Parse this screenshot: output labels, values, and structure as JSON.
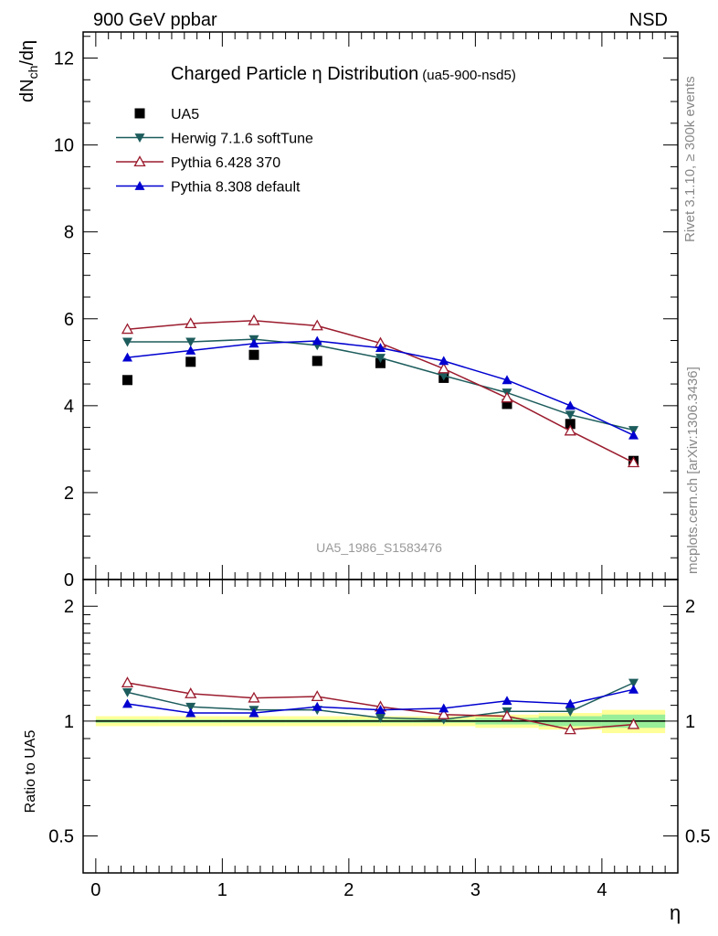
{
  "header": {
    "left_label": "900 GeV ppbar",
    "right_label": "NSD"
  },
  "side_labels": {
    "rivet": "Rivet 3.1.10, ≥ 300k events",
    "mcplots": "mcplots.cern.ch [arXiv:1306.3436]"
  },
  "colors": {
    "data": "#000000",
    "herwig": "#1d5c5c",
    "pythia6": "#9b1c2e",
    "pythia8": "#0000d0",
    "band_yellow": "#ffff99",
    "band_green": "#99ee99"
  },
  "chart_data": [
    {
      "type": "line",
      "title": "Charged Particle η Distribution",
      "subtitle": "(ua5-900-nsd5)",
      "xlabel": "",
      "ylabel": "dN_ch/dη",
      "watermark": "UA5_1986_S1583476",
      "xlim": [
        -0.1,
        4.6
      ],
      "ylim": [
        0,
        12.6
      ],
      "yticks": [
        0,
        2,
        4,
        6,
        8,
        10,
        12
      ],
      "xticks": [
        0,
        1,
        2,
        3,
        4
      ],
      "grid": false,
      "legend_position": "top-left",
      "x": [
        0.25,
        0.75,
        1.25,
        1.75,
        2.25,
        2.75,
        3.25,
        3.75,
        4.25
      ],
      "series": [
        {
          "name": "UA5",
          "marker": "square",
          "values": [
            4.59,
            5.01,
            5.17,
            5.03,
            4.98,
            4.64,
            4.04,
            3.58,
            2.73
          ]
        },
        {
          "name": "Herwig 7.1.6 softTune",
          "marker": "triangle-down",
          "values": [
            5.47,
            5.47,
            5.53,
            5.39,
            5.1,
            4.69,
            4.3,
            3.79,
            3.44
          ]
        },
        {
          "name": "Pythia 6.428 370",
          "marker": "triangle-open",
          "values": [
            5.76,
            5.89,
            5.96,
            5.84,
            5.44,
            4.85,
            4.18,
            3.42,
            2.69
          ]
        },
        {
          "name": "Pythia 8.308 default",
          "marker": "triangle-up",
          "values": [
            5.11,
            5.27,
            5.43,
            5.49,
            5.33,
            5.03,
            4.59,
            4.0,
            3.32
          ]
        }
      ]
    },
    {
      "type": "line",
      "xlabel": "η",
      "ylabel": "Ratio to UA5",
      "log_y": true,
      "ylim": [
        0.4,
        2.35
      ],
      "yticks": [
        0.5,
        1,
        2
      ],
      "yticklabels": [
        "0.5",
        "1",
        "2"
      ],
      "xticks": [
        0,
        1,
        2,
        3,
        4
      ],
      "xticklabels": [
        "0",
        "1",
        "2",
        "3",
        "4"
      ],
      "xlim": [
        -0.1,
        4.6
      ],
      "x": [
        0.25,
        0.75,
        1.25,
        1.75,
        2.25,
        2.75,
        3.25,
        3.75,
        4.25
      ],
      "bands": {
        "x_edges": [
          0,
          0.5,
          1,
          1.5,
          2,
          2.5,
          3,
          3.5,
          4,
          4.5
        ],
        "yellow": [
          [
            0.97,
            1.03
          ],
          [
            0.97,
            1.03
          ],
          [
            0.97,
            1.03
          ],
          [
            0.97,
            1.03
          ],
          [
            0.97,
            1.03
          ],
          [
            0.97,
            1.03
          ],
          [
            0.96,
            1.04
          ],
          [
            0.95,
            1.05
          ],
          [
            0.93,
            1.07
          ]
        ],
        "green": [
          [
            0.99,
            1.01
          ],
          [
            0.99,
            1.01
          ],
          [
            0.99,
            1.01
          ],
          [
            0.99,
            1.01
          ],
          [
            0.99,
            1.01
          ],
          [
            0.99,
            1.01
          ],
          [
            0.98,
            1.02
          ],
          [
            0.97,
            1.03
          ],
          [
            0.96,
            1.04
          ]
        ]
      },
      "series": [
        {
          "name": "Herwig 7.1.6 softTune",
          "marker": "triangle-down",
          "values": [
            1.19,
            1.09,
            1.07,
            1.07,
            1.02,
            1.01,
            1.06,
            1.06,
            1.26
          ]
        },
        {
          "name": "Pythia 6.428 370",
          "marker": "triangle-open",
          "values": [
            1.26,
            1.18,
            1.15,
            1.16,
            1.09,
            1.04,
            1.03,
            0.95,
            0.98
          ]
        },
        {
          "name": "Pythia 8.308 default",
          "marker": "triangle-up",
          "values": [
            1.11,
            1.05,
            1.05,
            1.09,
            1.07,
            1.08,
            1.13,
            1.11,
            1.21
          ]
        }
      ]
    }
  ]
}
